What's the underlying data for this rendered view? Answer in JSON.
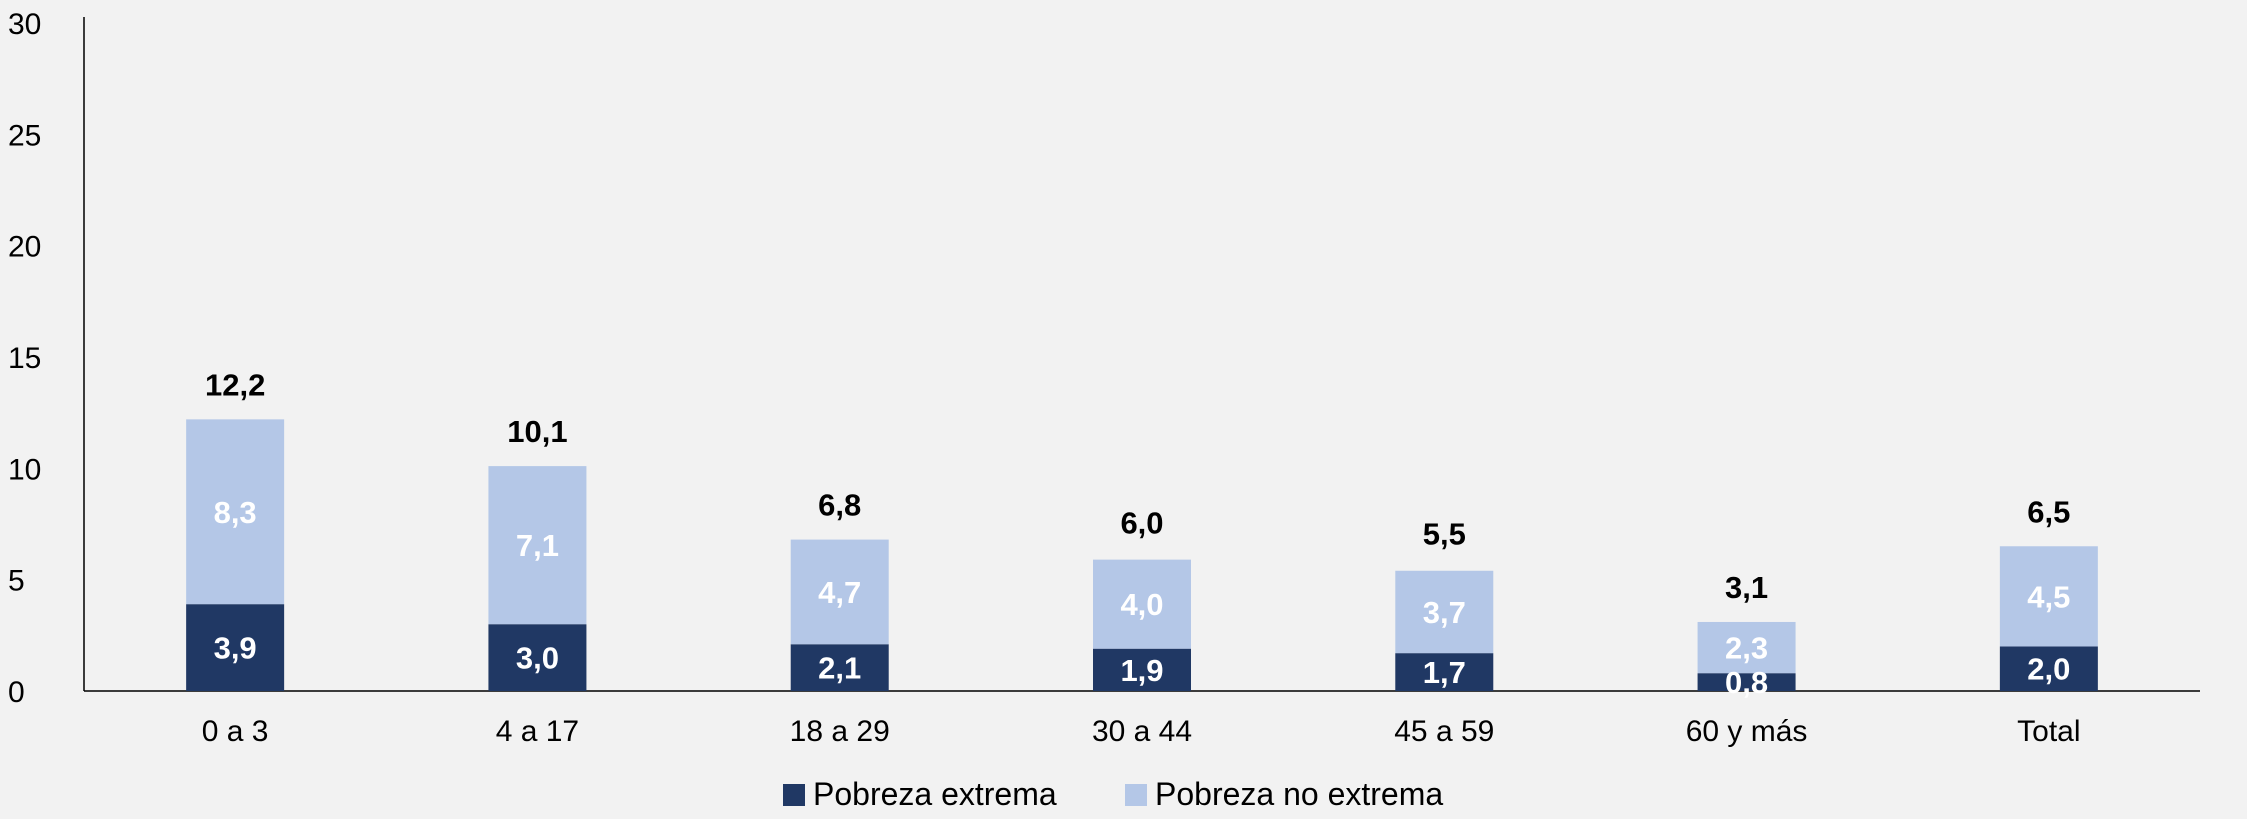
{
  "chart_data": {
    "type": "bar",
    "stacked": true,
    "categories": [
      "0 a 3",
      "4 a 17",
      "18 a 29",
      "30 a 44",
      "45 a 59",
      "60 y más",
      "Total"
    ],
    "series": [
      {
        "name": "Pobreza extrema",
        "color": "#203864",
        "values": [
          3.9,
          3.0,
          2.1,
          1.9,
          1.7,
          0.8,
          2.0
        ],
        "labels": [
          "3,9",
          "3,0",
          "2,1",
          "1,9",
          "1,7",
          "0,8",
          "2,0"
        ]
      },
      {
        "name": "Pobreza no extrema",
        "color": "#b4c7e7",
        "values": [
          8.3,
          7.1,
          4.7,
          4.0,
          3.7,
          2.3,
          4.5
        ],
        "labels": [
          "8,3",
          "7,1",
          "4,7",
          "4,0",
          "3,7",
          "2,3",
          "4,5"
        ]
      }
    ],
    "totals": [
      12.2,
      10.1,
      6.8,
      6.0,
      5.5,
      3.1,
      6.5
    ],
    "total_labels": [
      "12,2",
      "10,1",
      "6,8",
      "6,0",
      "5,5",
      "3,1",
      "6,5"
    ],
    "title": "",
    "xlabel": "",
    "ylabel": "",
    "ylim": [
      0,
      30
    ],
    "yticks": [
      0,
      5,
      10,
      15,
      20,
      25,
      30
    ],
    "grid": false,
    "legend_position": "bottom"
  }
}
